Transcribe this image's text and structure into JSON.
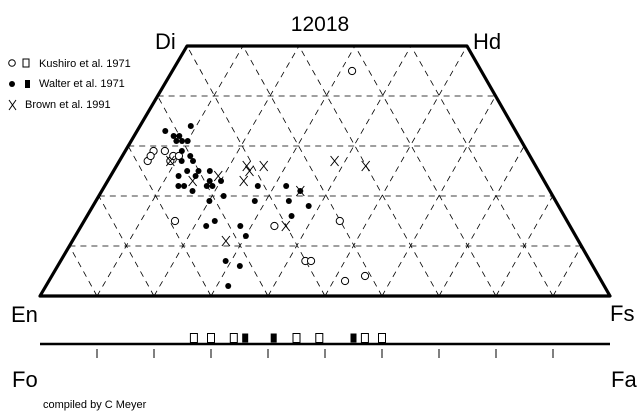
{
  "chart_data": {
    "type": "scatter",
    "title": "12018",
    "corners": {
      "di": "Di",
      "hd": "Hd",
      "en": "En",
      "fs": "Fs"
    },
    "bottom_axis": {
      "left": "Fo",
      "right": "Fa"
    },
    "legend": [
      {
        "text": "Kushiro et al. 1971",
        "symbols": [
          "open-circle",
          "open-square"
        ]
      },
      {
        "text": "Walter et al. 1971",
        "symbols": [
          "filled-circle",
          "filled-square"
        ]
      },
      {
        "text": "Brown et al. 1991",
        "symbols": [
          "cross"
        ]
      }
    ],
    "series": [
      {
        "name": "Kushiro et al. 1971",
        "pyroxene": [
          {
            "en": 23,
            "fs": 32
          },
          {
            "en": 50,
            "fs": 43
          },
          {
            "en": 69,
            "fs": 16
          },
          {
            "en": 41,
            "fs": 55
          },
          {
            "en": 64,
            "fs": 9
          },
          {
            "en": 49,
            "fs": 44
          },
          {
            "en": 63,
            "fs": 9
          },
          {
            "en": 68,
            "fs": 5
          },
          {
            "en": 66,
            "fs": 5
          },
          {
            "en": 62,
            "fs": 10
          },
          {
            "en": 64,
            "fs": 7
          },
          {
            "en": 67,
            "fs": 5
          },
          {
            "en": 40,
            "fs": 45
          },
          {
            "en": 45,
            "fs": 52
          },
          {
            "en": 52,
            "fs": 34
          }
        ],
        "olivine_fo": [
          73,
          70,
          66,
          55,
          51,
          43,
          40
        ]
      },
      {
        "name": "Walter et al. 1971",
        "pyroxene": [
          {
            "en": 62,
            "fs": 5
          },
          {
            "en": 60,
            "fs": 8
          },
          {
            "en": 61,
            "fs": 7
          },
          {
            "en": 60,
            "fs": 9
          },
          {
            "en": 61,
            "fs": 8
          },
          {
            "en": 59,
            "fs": 10
          },
          {
            "en": 61,
            "fs": 10
          },
          {
            "en": 60,
            "fs": 12
          },
          {
            "en": 60,
            "fs": 13
          },
          {
            "en": 60,
            "fs": 15
          },
          {
            "en": 62,
            "fs": 11
          },
          {
            "en": 62,
            "fs": 13
          },
          {
            "en": 64,
            "fs": 12
          },
          {
            "en": 61,
            "fs": 15
          },
          {
            "en": 64,
            "fs": 14
          },
          {
            "en": 65,
            "fs": 13
          },
          {
            "en": 63,
            "fs": 16
          },
          {
            "en": 59,
            "fs": 18
          },
          {
            "en": 60,
            "fs": 18
          },
          {
            "en": 59,
            "fs": 19
          },
          {
            "en": 58,
            "fs": 17
          },
          {
            "en": 57,
            "fs": 20
          },
          {
            "en": 61,
            "fs": 20
          },
          {
            "en": 62,
            "fs": 23
          },
          {
            "en": 64,
            "fs": 22
          },
          {
            "en": 58,
            "fs": 22
          },
          {
            "en": 51,
            "fs": 27
          },
          {
            "en": 53,
            "fs": 28
          },
          {
            "en": 46,
            "fs": 32
          },
          {
            "en": 44,
            "fs": 35
          },
          {
            "en": 44,
            "fs": 38
          },
          {
            "en": 47,
            "fs": 34
          },
          {
            "en": 48,
            "fs": 36
          },
          {
            "en": 58,
            "fs": 28
          },
          {
            "en": 58,
            "fs": 30
          },
          {
            "en": 62,
            "fs": 32
          },
          {
            "en": 64,
            "fs": 29
          },
          {
            "en": 66,
            "fs": 32
          },
          {
            "en": 57,
            "fs": 9
          }
        ],
        "olivine_fo": [
          64,
          59,
          45
        ]
      },
      {
        "name": "Brown et al. 1991",
        "pyroxene": [
          {
            "en": 53,
            "fs": 24
          },
          {
            "en": 51,
            "fs": 24
          },
          {
            "en": 51,
            "fs": 23
          },
          {
            "en": 48,
            "fs": 26
          },
          {
            "en": 44,
            "fs": 35
          },
          {
            "en": 30,
            "fs": 44
          },
          {
            "en": 35,
            "fs": 38
          },
          {
            "en": 64,
            "fs": 9
          },
          {
            "en": 62,
            "fs": 15
          },
          {
            "en": 50,
            "fs": 36
          },
          {
            "en": 62,
            "fs": 27
          },
          {
            "en": 57,
            "fs": 19
          }
        ]
      }
    ]
  },
  "credit": "compiled by C Meyer"
}
